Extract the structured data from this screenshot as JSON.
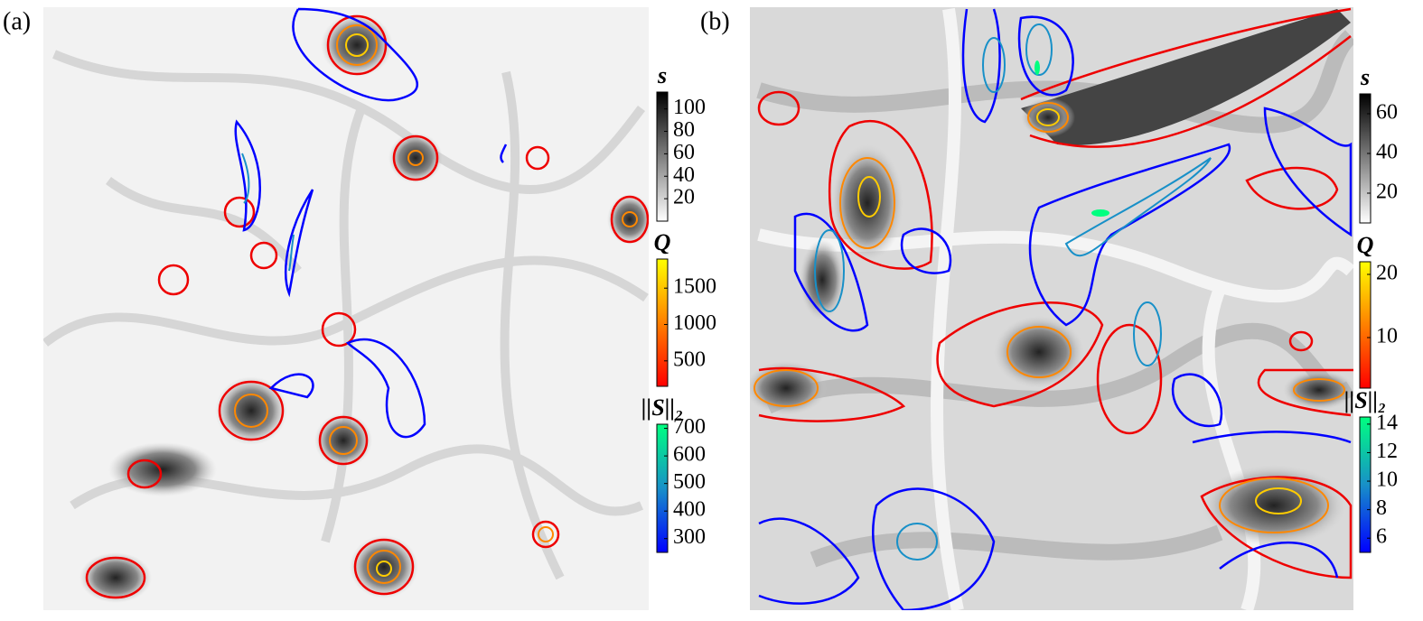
{
  "panels": [
    {
      "label": "(a)",
      "colorbars": [
        {
          "title": "s",
          "lim": [
            0,
            115
          ],
          "ticks": [
            20,
            40,
            60,
            80,
            100
          ],
          "colors": [
            "#ffffff",
            "#000000"
          ]
        },
        {
          "title": "Q",
          "lim": [
            150,
            1900
          ],
          "ticks": [
            500,
            1000,
            1500
          ],
          "colors": [
            "#ff0000",
            "#ff8000",
            "#ffff00"
          ]
        },
        {
          "title": "||S||₂",
          "lim": [
            250,
            715
          ],
          "ticks": [
            300,
            400,
            500,
            600,
            700
          ],
          "colors": [
            "#0000ff",
            "#1890c8",
            "#00ff80"
          ]
        }
      ]
    },
    {
      "label": "(b)",
      "colorbars": [
        {
          "title": "s",
          "lim": [
            5,
            70
          ],
          "ticks": [
            20,
            40,
            60
          ],
          "colors": [
            "#ffffff",
            "#000000"
          ]
        },
        {
          "title": "Q",
          "lim": [
            2,
            22
          ],
          "ticks": [
            10,
            20
          ],
          "colors": [
            "#ff0000",
            "#ff8000",
            "#ffff00"
          ]
        },
        {
          "title": "||S||₂",
          "lim": [
            5,
            14.5
          ],
          "ticks": [
            6,
            8,
            10,
            12,
            14
          ],
          "colors": [
            "#0000ff",
            "#1890c8",
            "#00ff80"
          ]
        }
      ]
    }
  ]
}
